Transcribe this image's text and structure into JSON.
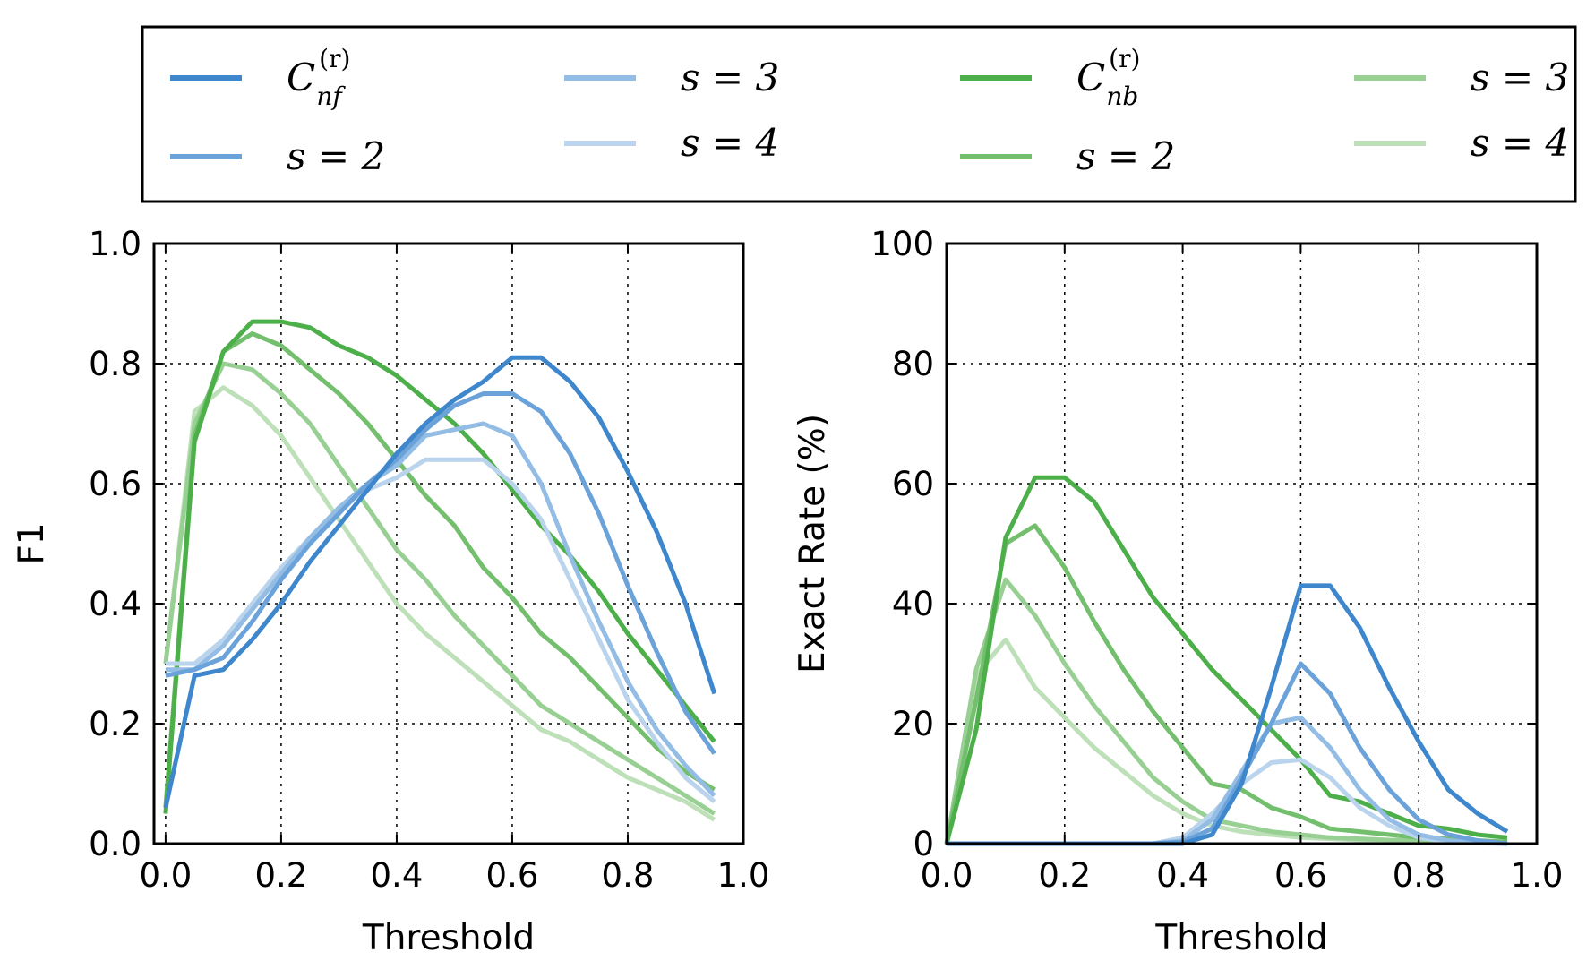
{
  "colors": {
    "blue": [
      "#3e87cc",
      "#6ba2d9",
      "#93bde4",
      "#b9d4ec"
    ],
    "green": [
      "#4daf4a",
      "#73bf6d",
      "#98cf93",
      "#bde0b8"
    ]
  },
  "legend": {
    "items": [
      {
        "series": "Cnf",
        "label_main": "C",
        "label_sup": "(r)",
        "label_sub": "nf",
        "color": "#3e87cc"
      },
      {
        "series": "s2b",
        "label": "s = 2",
        "color": "#6ba2d9"
      },
      {
        "series": "s3b",
        "label": "s = 3",
        "color": "#93bde4"
      },
      {
        "series": "s4b",
        "label": "s = 4",
        "color": "#b9d4ec"
      },
      {
        "series": "Cnb",
        "label_main": "C",
        "label_sup": "(r)",
        "label_sub": "nb",
        "color": "#4daf4a"
      },
      {
        "series": "s2g",
        "label": "s = 2",
        "color": "#73bf6d"
      },
      {
        "series": "s3g",
        "label": "s = 3",
        "color": "#98cf93"
      },
      {
        "series": "s4g",
        "label": "s = 4",
        "color": "#bde0b8"
      }
    ],
    "ncol": 4,
    "placement": "top, above both panels"
  },
  "chart_data": [
    {
      "type": "line",
      "xlabel": "Threshold",
      "ylabel": "F1",
      "xlim": [
        -0.02,
        1.0
      ],
      "ylim": [
        0.0,
        1.0
      ],
      "xticks": [
        0.0,
        0.2,
        0.4,
        0.6,
        0.8,
        1.0
      ],
      "xtick_labels": [
        "0.0",
        "0.2",
        "0.4",
        "0.6",
        "0.8",
        "1.0"
      ],
      "yticks": [
        0.0,
        0.2,
        0.4,
        0.6,
        0.8,
        1.0
      ],
      "ytick_labels": [
        "0.0",
        "0.2",
        "0.4",
        "0.6",
        "0.8",
        "1.0"
      ],
      "grid": true,
      "x": [
        0.0,
        0.05,
        0.1,
        0.15,
        0.2,
        0.25,
        0.3,
        0.35,
        0.4,
        0.45,
        0.5,
        0.55,
        0.6,
        0.65,
        0.7,
        0.75,
        0.8,
        0.85,
        0.9,
        0.95
      ],
      "series": [
        {
          "key": "s4g",
          "color": "#bde0b8",
          "values": [
            0.3,
            0.72,
            0.76,
            0.73,
            0.68,
            0.61,
            0.54,
            0.47,
            0.4,
            0.35,
            0.31,
            0.27,
            0.23,
            0.19,
            0.17,
            0.14,
            0.11,
            0.09,
            0.07,
            0.04
          ]
        },
        {
          "key": "s3g",
          "color": "#98cf93",
          "values": [
            0.3,
            0.7,
            0.8,
            0.79,
            0.75,
            0.7,
            0.63,
            0.56,
            0.49,
            0.44,
            0.38,
            0.33,
            0.28,
            0.23,
            0.2,
            0.17,
            0.14,
            0.11,
            0.08,
            0.05
          ]
        },
        {
          "key": "s2g",
          "color": "#73bf6d",
          "values": [
            0.06,
            0.68,
            0.82,
            0.85,
            0.83,
            0.79,
            0.75,
            0.7,
            0.64,
            0.58,
            0.53,
            0.46,
            0.41,
            0.35,
            0.31,
            0.26,
            0.21,
            0.16,
            0.12,
            0.09
          ]
        },
        {
          "key": "Cnb",
          "color": "#4daf4a",
          "values": [
            0.05,
            0.67,
            0.82,
            0.87,
            0.87,
            0.86,
            0.83,
            0.81,
            0.78,
            0.74,
            0.7,
            0.65,
            0.59,
            0.53,
            0.48,
            0.42,
            0.35,
            0.29,
            0.23,
            0.17
          ]
        },
        {
          "key": "s4b",
          "color": "#b9d4ec",
          "values": [
            0.3,
            0.3,
            0.34,
            0.4,
            0.46,
            0.51,
            0.56,
            0.59,
            0.61,
            0.64,
            0.64,
            0.64,
            0.6,
            0.54,
            0.44,
            0.34,
            0.24,
            0.17,
            0.11,
            0.07
          ]
        },
        {
          "key": "s3b",
          "color": "#93bde4",
          "values": [
            0.29,
            0.29,
            0.33,
            0.39,
            0.45,
            0.51,
            0.56,
            0.6,
            0.63,
            0.68,
            0.69,
            0.7,
            0.68,
            0.6,
            0.48,
            0.37,
            0.27,
            0.19,
            0.13,
            0.08
          ]
        },
        {
          "key": "s2b",
          "color": "#6ba2d9",
          "values": [
            0.28,
            0.29,
            0.31,
            0.37,
            0.44,
            0.5,
            0.55,
            0.6,
            0.64,
            0.69,
            0.73,
            0.75,
            0.75,
            0.72,
            0.65,
            0.55,
            0.43,
            0.32,
            0.22,
            0.15
          ]
        },
        {
          "key": "Cnf",
          "color": "#3e87cc",
          "values": [
            0.06,
            0.28,
            0.29,
            0.34,
            0.4,
            0.47,
            0.53,
            0.59,
            0.65,
            0.7,
            0.74,
            0.77,
            0.81,
            0.81,
            0.77,
            0.71,
            0.62,
            0.52,
            0.4,
            0.25
          ]
        }
      ]
    },
    {
      "type": "line",
      "xlabel": "Threshold",
      "ylabel": "Exact Rate (%)",
      "xlim": [
        0.0,
        1.0
      ],
      "ylim": [
        0,
        100
      ],
      "xticks": [
        0.0,
        0.2,
        0.4,
        0.6,
        0.8,
        1.0
      ],
      "xtick_labels": [
        "0.0",
        "0.2",
        "0.4",
        "0.6",
        "0.8",
        "1.0"
      ],
      "yticks": [
        0,
        20,
        40,
        60,
        80,
        100
      ],
      "ytick_labels": [
        "0",
        "20",
        "40",
        "60",
        "80",
        "100"
      ],
      "grid": true,
      "x": [
        0.0,
        0.05,
        0.1,
        0.15,
        0.2,
        0.25,
        0.3,
        0.35,
        0.4,
        0.45,
        0.5,
        0.55,
        0.6,
        0.65,
        0.7,
        0.75,
        0.8,
        0.85,
        0.9,
        0.95
      ],
      "series": [
        {
          "key": "s4g",
          "color": "#bde0b8",
          "values": [
            0,
            28,
            34,
            26,
            21,
            16,
            12,
            8,
            5,
            3,
            2,
            1.5,
            1,
            0.8,
            0.6,
            0.5,
            0.4,
            0.3,
            0.2,
            0.2
          ]
        },
        {
          "key": "s3g",
          "color": "#98cf93",
          "values": [
            0,
            29,
            44,
            38,
            30,
            23,
            17,
            11,
            7,
            4,
            3,
            2,
            1.5,
            1,
            0.8,
            0.6,
            0.5,
            0.4,
            0.3,
            0.2
          ]
        },
        {
          "key": "s2g",
          "color": "#73bf6d",
          "values": [
            0,
            24,
            50,
            53,
            46,
            37,
            29,
            22,
            16,
            10,
            9,
            6,
            4.5,
            2.5,
            2,
            1.5,
            1,
            0.8,
            0.5,
            0.3
          ]
        },
        {
          "key": "Cnb",
          "color": "#4daf4a",
          "values": [
            0,
            19,
            51,
            61,
            61,
            57,
            49,
            41,
            35,
            29,
            24,
            19,
            14,
            8,
            7,
            5,
            3,
            2.5,
            1.5,
            1
          ]
        },
        {
          "key": "s4b",
          "color": "#b9d4ec",
          "values": [
            0,
            0,
            0,
            0,
            0,
            0,
            0,
            0,
            1,
            5,
            10,
            13.5,
            14,
            11,
            6,
            3,
            1,
            0.3,
            0.1,
            0
          ]
        },
        {
          "key": "s3b",
          "color": "#93bde4",
          "values": [
            0,
            0,
            0,
            0,
            0,
            0,
            0,
            0,
            0.5,
            4,
            12,
            20,
            21,
            16,
            9,
            4,
            1.5,
            0.5,
            0.2,
            0
          ]
        },
        {
          "key": "s2b",
          "color": "#6ba2d9",
          "values": [
            0,
            0,
            0,
            0,
            0,
            0,
            0,
            0,
            0.3,
            2.5,
            11,
            20,
            30,
            25,
            16,
            9,
            4,
            1.5,
            0.5,
            0
          ]
        },
        {
          "key": "Cnf",
          "color": "#3e87cc",
          "values": [
            0,
            0,
            0,
            0,
            0,
            0,
            0,
            0,
            0,
            1.5,
            10,
            26,
            43,
            43,
            36,
            26,
            17,
            9,
            5,
            2
          ]
        }
      ]
    }
  ]
}
